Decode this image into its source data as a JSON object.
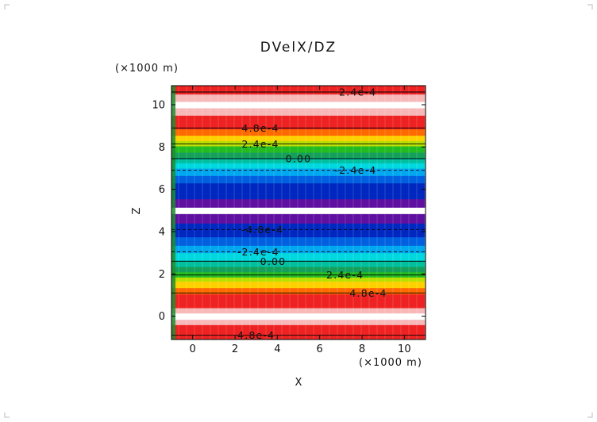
{
  "chart_data": {
    "type": "heatmap",
    "title": "DVelX/DZ",
    "xlabel": "X",
    "ylabel": "Z",
    "x_unit_label": "(×1000 m)",
    "y_unit_label": "(×1000 m)",
    "xlim": [
      -1,
      11
    ],
    "ylim": [
      -1.1,
      10.9
    ],
    "xticks": [
      0,
      2,
      4,
      6,
      8,
      10
    ],
    "yticks": [
      0,
      2,
      4,
      6,
      8,
      10
    ],
    "xtick_labels": [
      "0",
      "2",
      "4",
      "6",
      "8",
      "10"
    ],
    "ytick_labels": [
      "0",
      "2",
      "4",
      "6",
      "8",
      "10"
    ],
    "bands": [
      {
        "z0": -1.1,
        "z1": -0.4,
        "color": "#ee2222"
      },
      {
        "z0": -0.4,
        "z1": -0.15,
        "color": "#f8b8b8"
      },
      {
        "z0": -0.15,
        "z1": 0.15,
        "color": "#ffffff"
      },
      {
        "z0": 0.15,
        "z1": 0.4,
        "color": "#f8b8b8"
      },
      {
        "z0": 0.4,
        "z1": 1.05,
        "color": "#ee2222"
      },
      {
        "z0": 1.05,
        "z1": 1.35,
        "color": "#ff6a00"
      },
      {
        "z0": 1.35,
        "z1": 1.65,
        "color": "#ffd000"
      },
      {
        "z0": 1.65,
        "z1": 1.85,
        "color": "#b8e000"
      },
      {
        "z0": 1.85,
        "z1": 2.1,
        "color": "#22bb22"
      },
      {
        "z0": 2.1,
        "z1": 2.35,
        "color": "#14a05a"
      },
      {
        "z0": 2.35,
        "z1": 2.65,
        "color": "#00c0a0"
      },
      {
        "z0": 2.65,
        "z1": 3.0,
        "color": "#00d8e0"
      },
      {
        "z0": 3.0,
        "z1": 3.35,
        "color": "#00a8f0"
      },
      {
        "z0": 3.35,
        "z1": 3.75,
        "color": "#0060e0"
      },
      {
        "z0": 3.75,
        "z1": 4.4,
        "color": "#0028c0"
      },
      {
        "z0": 4.4,
        "z1": 4.85,
        "color": "#6010a0"
      },
      {
        "z0": 4.85,
        "z1": 5.15,
        "color": "#ffffff"
      },
      {
        "z0": 5.15,
        "z1": 5.55,
        "color": "#6010a0"
      },
      {
        "z0": 5.55,
        "z1": 6.3,
        "color": "#0028c0"
      },
      {
        "z0": 6.3,
        "z1": 6.65,
        "color": "#0060e0"
      },
      {
        "z0": 6.65,
        "z1": 7.0,
        "color": "#00a8f0"
      },
      {
        "z0": 7.0,
        "z1": 7.25,
        "color": "#00d8e0"
      },
      {
        "z0": 7.25,
        "z1": 7.5,
        "color": "#00c0a0"
      },
      {
        "z0": 7.5,
        "z1": 7.75,
        "color": "#14a05a"
      },
      {
        "z0": 7.75,
        "z1": 8.05,
        "color": "#22bb22"
      },
      {
        "z0": 8.05,
        "z1": 8.3,
        "color": "#b8e000"
      },
      {
        "z0": 8.3,
        "z1": 8.55,
        "color": "#ffd000"
      },
      {
        "z0": 8.55,
        "z1": 8.85,
        "color": "#ff6a00"
      },
      {
        "z0": 8.85,
        "z1": 9.5,
        "color": "#ee2222"
      },
      {
        "z0": 9.5,
        "z1": 9.85,
        "color": "#f8b8b8"
      },
      {
        "z0": 9.85,
        "z1": 10.15,
        "color": "#ffffff"
      },
      {
        "z0": 10.15,
        "z1": 10.5,
        "color": "#f8b8b8"
      },
      {
        "z0": 10.5,
        "z1": 10.9,
        "color": "#ee2222"
      }
    ],
    "contours": [
      {
        "z": -0.9,
        "label": "4.8e-4",
        "label_x": 3.0,
        "dashed": false
      },
      {
        "z": 1.1,
        "label": "4.8e-4",
        "label_x": 8.3,
        "dashed": false
      },
      {
        "z": 1.95,
        "label": "2.4e-4",
        "label_x": 7.2,
        "dashed": false
      },
      {
        "z": 2.6,
        "label": "0.00",
        "label_x": 3.8,
        "dashed": false
      },
      {
        "z": 3.05,
        "label": "-2.4e-4",
        "label_x": 3.1,
        "dashed": true
      },
      {
        "z": 4.1,
        "label": "-4.8e-4",
        "label_x": 3.3,
        "dashed": true
      },
      {
        "z": 6.9,
        "label": "-2.4e-4",
        "label_x": 7.7,
        "dashed": true
      },
      {
        "z": 7.45,
        "label": "0.00",
        "label_x": 5.0,
        "dashed": false
      },
      {
        "z": 8.15,
        "label": "2.4e-4",
        "label_x": 3.2,
        "dashed": false
      },
      {
        "z": 8.9,
        "label": "4.8e-4",
        "label_x": 3.2,
        "dashed": false
      },
      {
        "z": 10.6,
        "label": "2.4e-4",
        "label_x": 7.8,
        "dashed": false
      }
    ],
    "grid": true,
    "legend": "none"
  }
}
